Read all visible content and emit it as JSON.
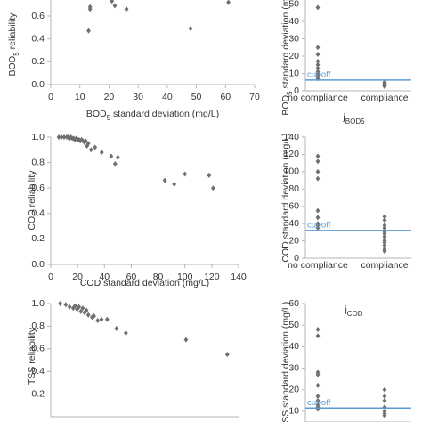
{
  "chart_data": [
    {
      "type": "scatter",
      "ylabel": [
        "BOD",
        "5",
        " reliability"
      ],
      "xlabel": [
        "BOD",
        "5",
        " standard deviation (mg/L)"
      ],
      "x": [
        13,
        13.5,
        13.5,
        21,
        22,
        26,
        48,
        61
      ],
      "y": [
        0.47,
        0.66,
        0.68,
        0.73,
        0.69,
        0.66,
        0.49,
        0.72
      ],
      "xlim": [
        0,
        70
      ],
      "ylim": [
        0,
        0.74
      ],
      "xticks": [
        0,
        10,
        20,
        30,
        40,
        50,
        60,
        70
      ],
      "yticks": [
        {
          "value": 0,
          "label": "0.0"
        },
        {
          "value": 0.2,
          "label": "0.2"
        },
        {
          "value": 0.4,
          "label": "0.4"
        },
        {
          "value": 0.6,
          "label": "0.6"
        }
      ],
      "color": "#6f6f6f"
    },
    {
      "type": "strip",
      "ylabel": [
        "BOD",
        "5",
        " standard deviation (mg/L)"
      ],
      "subtitle": [
        "j",
        "BOD5"
      ],
      "groups": [
        {
          "category": "no compliance",
          "values": [
            48,
            25,
            21,
            17,
            15,
            13,
            11,
            10,
            9,
            8,
            7
          ]
        },
        {
          "category": "compliance",
          "values": [
            5,
            4.5,
            4,
            3.5,
            3,
            2.5
          ]
        }
      ],
      "cutoff": {
        "label": "cut-off",
        "value": 6.2
      },
      "ylim": [
        0,
        52.3
      ],
      "yticks": [
        0,
        10,
        20,
        30,
        40,
        50
      ],
      "color": "#6f6f6f",
      "cutoff_color": "#5b9bd5"
    },
    {
      "type": "scatter",
      "ylabel": [
        "COD reliability"
      ],
      "xlabel": [
        "COD standard deviation (mg/L)"
      ],
      "x": [
        6,
        8,
        10,
        12,
        13,
        14,
        15,
        16,
        17,
        18,
        19,
        20,
        21,
        22,
        23,
        24,
        25,
        26,
        27,
        28,
        30,
        33,
        38,
        45,
        48,
        50,
        85,
        92,
        100,
        118,
        121
      ],
      "y": [
        1,
        1,
        1,
        1,
        1,
        0.99,
        1,
        0.99,
        0.99,
        0.98,
        0.99,
        0.98,
        0.98,
        0.97,
        0.98,
        0.97,
        0.96,
        0.97,
        0.93,
        0.95,
        0.9,
        0.92,
        0.88,
        0.85,
        0.79,
        0.84,
        0.66,
        0.63,
        0.71,
        0.7,
        0.6
      ],
      "xlim": [
        0,
        140
      ],
      "ylim": [
        0,
        1
      ],
      "xticks": [
        0,
        20,
        40,
        60,
        80,
        100,
        120,
        140
      ],
      "yticks": [
        {
          "value": 0,
          "label": "0.0"
        },
        {
          "value": 0.2,
          "label": "0.2"
        },
        {
          "value": 0.4,
          "label": "0.4"
        },
        {
          "value": 0.6,
          "label": "0.6"
        },
        {
          "value": 0.8,
          "label": "0.8"
        },
        {
          "value": 1,
          "label": "1.0"
        }
      ],
      "color": "#6f6f6f"
    },
    {
      "type": "strip",
      "ylabel": [
        "COD standard deviation (mg/L)"
      ],
      "subtitle": [
        "j",
        "COD"
      ],
      "groups": [
        {
          "category": "no compliance",
          "values": [
            118,
            112,
            100,
            92,
            55,
            47,
            40,
            38,
            35
          ]
        },
        {
          "category": "compliance",
          "values": [
            48,
            44,
            38,
            35,
            32,
            30,
            28,
            25,
            22,
            20,
            18,
            15,
            12,
            10,
            8
          ]
        }
      ],
      "cutoff": {
        "label": "cut-off",
        "value": 32
      },
      "ylim": [
        0,
        140
      ],
      "yticks": [
        0,
        20,
        40,
        60,
        80,
        100,
        120,
        140
      ],
      "color": "#6f6f6f",
      "cutoff_color": "#5b9bd5"
    },
    {
      "type": "scatter",
      "ylabel": [
        "TSS reliability"
      ],
      "x": [
        5,
        8,
        10,
        12,
        13,
        14,
        15,
        16,
        17,
        18,
        19,
        20,
        22,
        23,
        25,
        27,
        30,
        35,
        40,
        72,
        94
      ],
      "y": [
        1,
        0.99,
        0.97,
        0.96,
        0.98,
        0.95,
        0.97,
        0.93,
        0.96,
        0.92,
        0.94,
        0.9,
        0.88,
        0.89,
        0.85,
        0.86,
        0.86,
        0.78,
        0.74,
        0.68,
        0.55
      ],
      "xlim": [
        0,
        100
      ],
      "ylim": [
        0,
        1
      ],
      "yticks": [
        {
          "value": 0.2,
          "label": "0.2"
        },
        {
          "value": 0.4,
          "label": "0.4"
        },
        {
          "value": 0.6,
          "label": "0.6"
        },
        {
          "value": 0.8,
          "label": "0.8"
        },
        {
          "value": 1,
          "label": "1.0"
        }
      ],
      "color": "#6f6f6f"
    },
    {
      "type": "strip",
      "ylabel": [
        "TSS standard deviation (mg/L)"
      ],
      "groups": [
        {
          "category": "no compliance",
          "values": [
            48,
            45,
            28,
            27,
            22,
            17,
            15,
            13,
            12,
            11
          ]
        },
        {
          "category": "compliance",
          "values": [
            20,
            17,
            15,
            12,
            10,
            9,
            8
          ]
        }
      ],
      "cutoff": {
        "label": "cut-off",
        "value": 11.5
      },
      "ylim": [
        5,
        60
      ],
      "yticks": [
        10,
        20,
        30,
        40,
        50,
        60
      ],
      "color": "#6f6f6f",
      "cutoff_color": "#5b9bd5"
    }
  ]
}
